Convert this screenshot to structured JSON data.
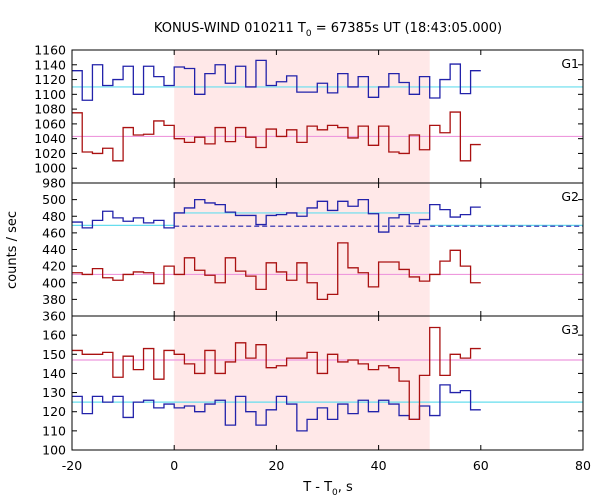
{
  "chart_data": {
    "type": "line",
    "title": "KONUS-WIND 010211 T",
    "title_sub": "0",
    "title_rest": " = 67385s UT (18:43:05.000)",
    "xlabel": "T - T",
    "xlabel_sub": "0",
    "xlabel_rest": ", s",
    "ylabel": "counts / sec",
    "x_range": [
      -20,
      80
    ],
    "x_ticks": [
      -20,
      0,
      20,
      40,
      60,
      80
    ],
    "x_tick_labels": [
      "-20",
      "0",
      "20",
      "40",
      "60",
      "80"
    ],
    "shaded_interval": [
      0,
      50
    ],
    "bin_width": 2,
    "colors": {
      "background_shade": "#ffe8e8",
      "series_a": "#2222aa",
      "series_b": "#aa1111",
      "level_a": "#66ddee",
      "level_b": "#ee99dd"
    },
    "panels": [
      {
        "name": "G1",
        "ylim": [
          980,
          1160
        ],
        "yticks": [
          980,
          1000,
          1020,
          1040,
          1060,
          1080,
          1100,
          1120,
          1140,
          1160
        ],
        "ytick_labels": [
          "980",
          "1000",
          "1020",
          "1040",
          "1060",
          "1080",
          "1100",
          "1120",
          "1140",
          "1160"
        ],
        "series": [
          {
            "color_key": "series_a",
            "level": 1110,
            "level_color_key": "level_a",
            "level_from": -20,
            "values": [
              1132,
              1092,
              1140,
              1112,
              1120,
              1138,
              1100,
              1138,
              1124,
              1112,
              1137,
              1135,
              1100,
              1128,
              1140,
              1115,
              1138,
              1110,
              1146,
              1112,
              1117,
              1125,
              1103,
              1103,
              1115,
              1102,
              1128,
              1110,
              1124,
              1096,
              1110,
              1128,
              1116,
              1100,
              1124,
              1095,
              1120,
              1141,
              1101,
              1132
            ]
          },
          {
            "color_key": "series_b",
            "level": 1043,
            "level_color_key": "level_b",
            "level_from": -20,
            "values": [
              1075,
              1022,
              1020,
              1027,
              1010,
              1055,
              1045,
              1046,
              1064,
              1058,
              1040,
              1035,
              1042,
              1033,
              1055,
              1036,
              1055,
              1042,
              1028,
              1053,
              1043,
              1052,
              1035,
              1057,
              1052,
              1058,
              1055,
              1041,
              1057,
              1031,
              1057,
              1022,
              1020,
              1045,
              1025,
              1058,
              1048,
              1076,
              1010,
              1032
            ]
          }
        ]
      },
      {
        "name": "G2",
        "ylim": [
          360,
          520
        ],
        "yticks": [
          360,
          380,
          400,
          420,
          440,
          460,
          480,
          500
        ],
        "ytick_labels": [
          "360",
          "380",
          "400",
          "420",
          "440",
          "460",
          "480",
          "500"
        ],
        "series": [
          {
            "color_key": "series_a",
            "level": 469,
            "level_color_key": "level_a",
            "level_from": -20,
            "level_to": 0,
            "level2": 484,
            "level2_from": 0,
            "level2_to": 50,
            "level3": 469,
            "level3_from": 50,
            "level3_to": 80,
            "fit": 468,
            "fit_from": 0,
            "fit_to": 80,
            "fit_dashed": true,
            "values": [
              473,
              466,
              475,
              486,
              478,
              474,
              478,
              472,
              475,
              466,
              484,
              490,
              500,
              496,
              494,
              485,
              481,
              481,
              470,
              481,
              482,
              484,
              480,
              490,
              498,
              487,
              498,
              492,
              500,
              483,
              461,
              478,
              482,
              471,
              476,
              494,
              488,
              479,
              482,
              491
            ]
          },
          {
            "color_key": "series_b",
            "level": 410,
            "level_color_key": "level_b",
            "level_from": -20,
            "values": [
              412,
              410,
              417,
              406,
              403,
              410,
              413,
              412,
              399,
              420,
              410,
              430,
              415,
              409,
              400,
              430,
              414,
              408,
              392,
              424,
              413,
              403,
              424,
              400,
              380,
              386,
              448,
              418,
              412,
              395,
              425,
              425,
              416,
              407,
              402,
              410,
              426,
              439,
              420,
              400
            ]
          }
        ]
      },
      {
        "name": "G3",
        "ylim": [
          100,
          170
        ],
        "yticks": [
          100,
          110,
          120,
          130,
          140,
          150,
          160
        ],
        "ytick_labels": [
          "100",
          "110",
          "120",
          "130",
          "140",
          "150",
          "160"
        ],
        "series": [
          {
            "color_key": "series_a",
            "level": 125,
            "level_color_key": "level_a",
            "level_from": -20,
            "values": [
              128,
              119,
              128,
              125,
              128,
              117,
              125,
              126,
              122,
              124,
              122,
              123,
              120,
              124,
              126,
              113,
              128,
              120,
              113,
              121,
              128,
              124,
              110,
              116,
              122,
              116,
              124,
              119,
              126,
              120,
              126,
              124,
              118,
              116,
              123,
              118,
              134,
              130,
              131,
              121
            ]
          },
          {
            "color_key": "series_b",
            "level": 147,
            "level_color_key": "level_b",
            "level_from": -20,
            "values": [
              152,
              150,
              150,
              151,
              138,
              149,
              142,
              153,
              137,
              152,
              150,
              145,
              140,
              152,
              140,
              146,
              156,
              148,
              155,
              143,
              144,
              148,
              148,
              151,
              140,
              150,
              146,
              147,
              145,
              142,
              144,
              143,
              136,
              116,
              139,
              164,
              139,
              150,
              148,
              153
            ]
          }
        ]
      }
    ]
  }
}
